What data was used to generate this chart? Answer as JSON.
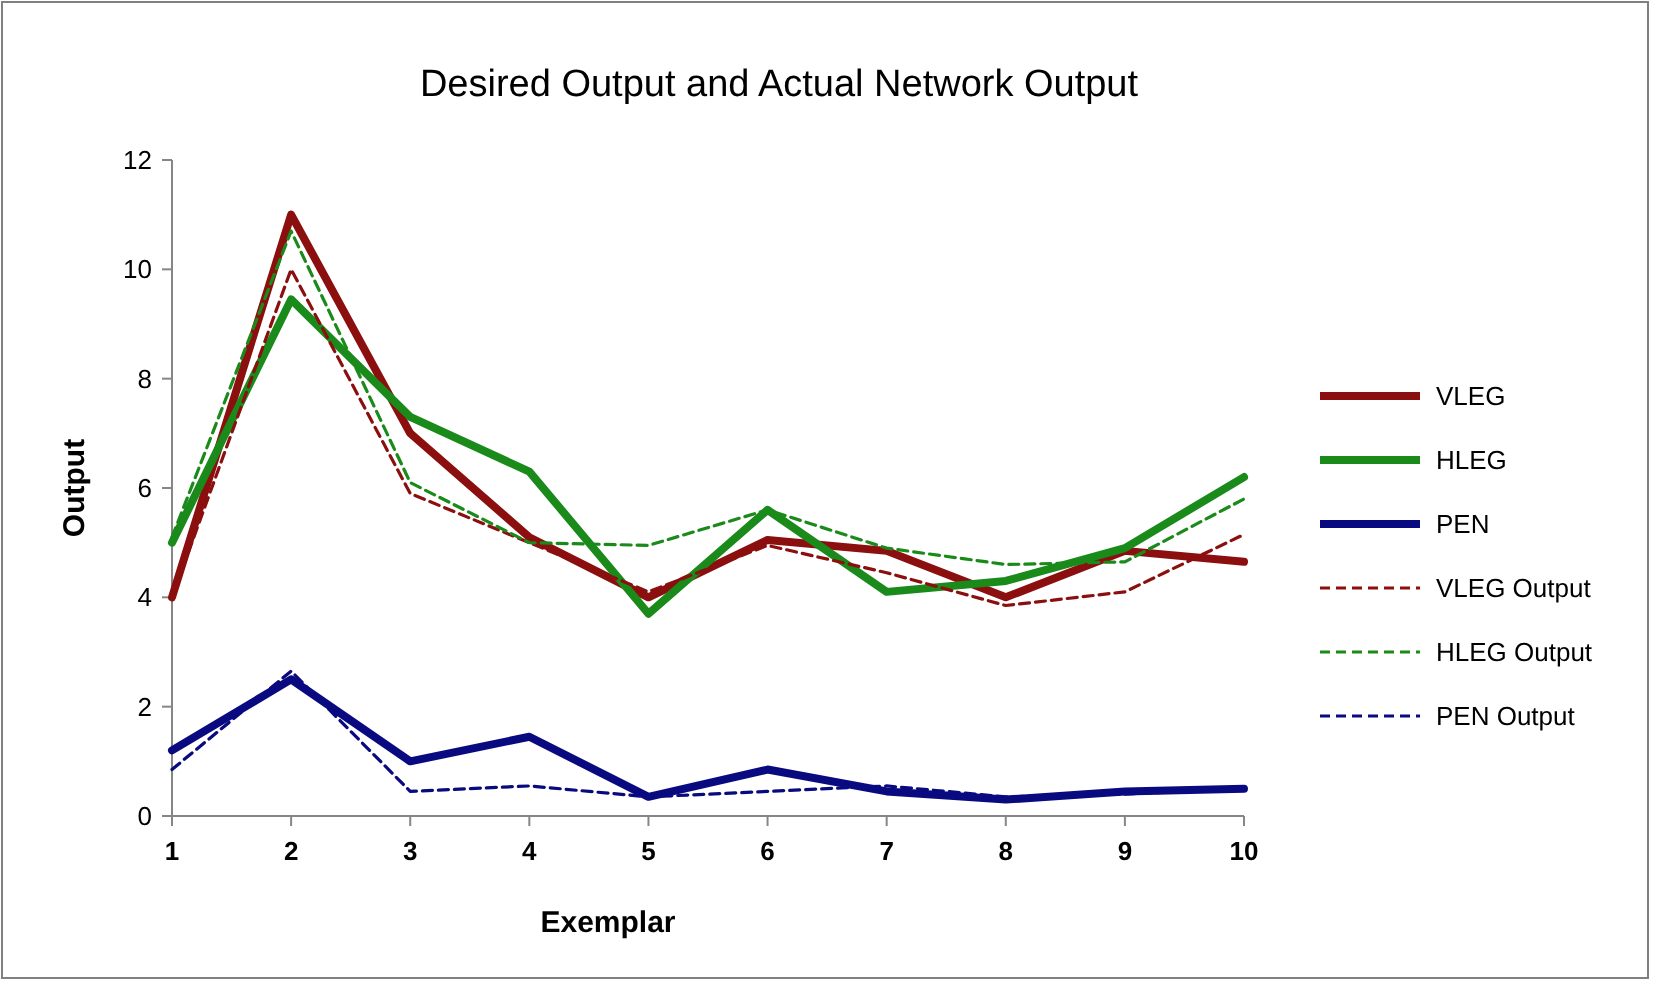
{
  "chart_data": {
    "type": "line",
    "title": "Desired Output and Actual Network Output",
    "xlabel": "Exemplar",
    "ylabel": "Output",
    "x": [
      1,
      2,
      3,
      4,
      5,
      6,
      7,
      8,
      9,
      10
    ],
    "xlim": [
      1,
      10
    ],
    "xticks": [
      1,
      2,
      3,
      4,
      5,
      6,
      7,
      8,
      9,
      10
    ],
    "ylim": [
      0,
      12
    ],
    "yticks": [
      0,
      2,
      4,
      6,
      8,
      10,
      12
    ],
    "grid": false,
    "legend": "right",
    "marker": "none",
    "series": [
      {
        "name": "VLEG",
        "color": "#8b0f0f",
        "line_style": "solid",
        "values": [
          4,
          11,
          7,
          5.1,
          4,
          5.05,
          4.85,
          4.0,
          4.85,
          4.65
        ]
      },
      {
        "name": "HLEG",
        "color": "#1a8a1a",
        "line_style": "solid",
        "values": [
          5,
          9.45,
          7.3,
          6.3,
          3.7,
          5.6,
          4.1,
          4.3,
          4.9,
          6.2
        ]
      },
      {
        "name": "PEN",
        "color": "#0a0a80",
        "line_style": "solid",
        "values": [
          1.2,
          2.5,
          1.0,
          1.45,
          0.35,
          0.85,
          0.45,
          0.3,
          0.45,
          0.5
        ]
      },
      {
        "name": "VLEG Output",
        "color": "#8b0f0f",
        "line_style": "dashed",
        "values": [
          4,
          10,
          5.9,
          5.0,
          4.1,
          4.95,
          4.45,
          3.85,
          4.1,
          5.15
        ]
      },
      {
        "name": "HLEG Output",
        "color": "#1a8a1a",
        "line_style": "dashed",
        "values": [
          5.1,
          10.7,
          6.1,
          5.0,
          4.95,
          5.6,
          4.9,
          4.6,
          4.65,
          5.8
        ]
      },
      {
        "name": "PEN Output",
        "color": "#0a0a80",
        "line_style": "dashed",
        "values": [
          0.85,
          2.65,
          0.45,
          0.55,
          0.35,
          0.45,
          0.55,
          0.35,
          0.4,
          0.5
        ]
      }
    ]
  }
}
